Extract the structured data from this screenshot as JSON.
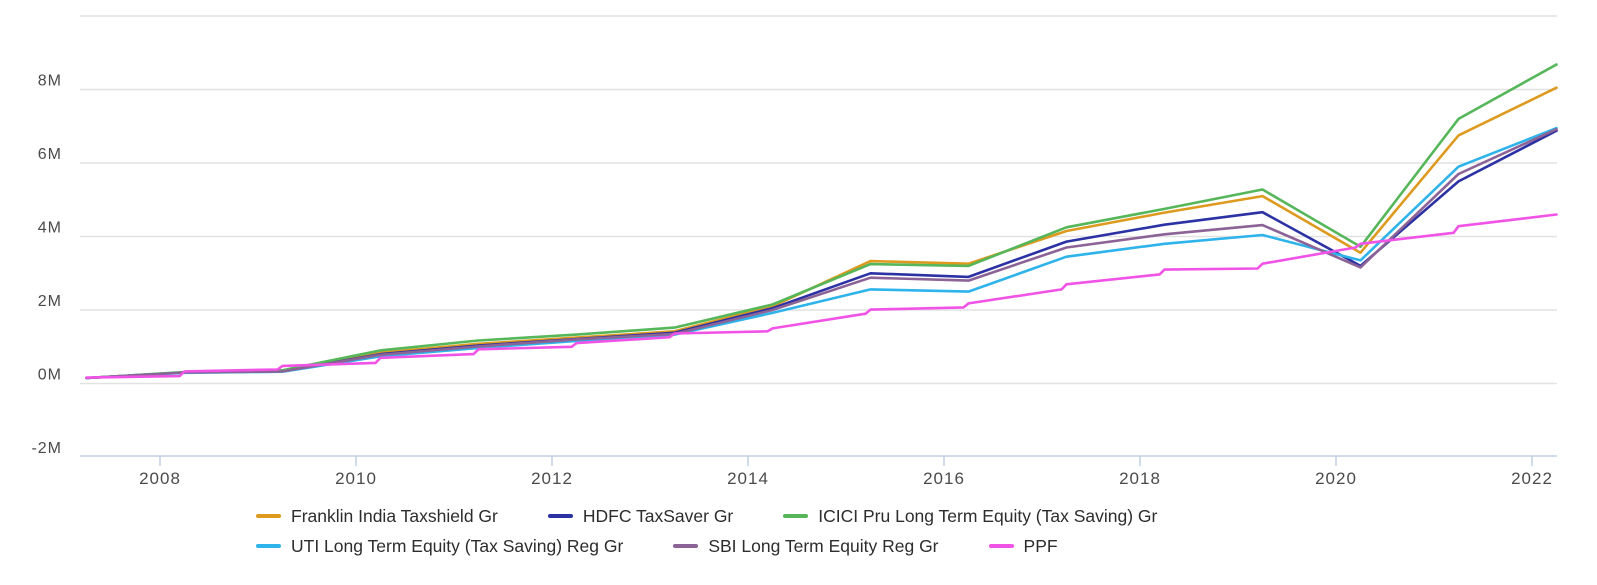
{
  "chart_data": {
    "type": "line",
    "title": "",
    "xlabel": "",
    "ylabel": "",
    "x_unit": "year",
    "xlim": [
      2007.25,
      2022.25
    ],
    "ylim": [
      -2,
      10
    ],
    "grid": true,
    "legend_position": "bottom",
    "colors": {
      "axis_line": "#bfcfe0",
      "grid_line": "#e2e2e2",
      "label_text": "#4b4b4b",
      "background": "#ffffff"
    },
    "y_gridlines": [
      10,
      8,
      6,
      4,
      2,
      0
    ],
    "y_ticks": [
      {
        "value": 8,
        "label": "8M"
      },
      {
        "value": 6,
        "label": "6M"
      },
      {
        "value": 4,
        "label": "4M"
      },
      {
        "value": 2,
        "label": "2M"
      },
      {
        "value": 0,
        "label": "0M"
      },
      {
        "value": -2,
        "label": "-2M"
      }
    ],
    "x_ticks": [
      {
        "value": 2008,
        "label": "2008"
      },
      {
        "value": 2010,
        "label": "2010"
      },
      {
        "value": 2012,
        "label": "2012"
      },
      {
        "value": 2014,
        "label": "2014"
      },
      {
        "value": 2016,
        "label": "2016"
      },
      {
        "value": 2018,
        "label": "2018"
      },
      {
        "value": 2020,
        "label": "2020"
      },
      {
        "value": 2022,
        "label": "2022"
      }
    ],
    "series": [
      {
        "name": "Franklin India Taxshield Gr",
        "color": "#dd9a1f",
        "x": [
          2007.25,
          2008.25,
          2009.25,
          2010.25,
          2011.25,
          2012.25,
          2013.25,
          2014.25,
          2015.25,
          2016.25,
          2017.25,
          2018.25,
          2019.25,
          2020.25,
          2021.25,
          2022.25
        ],
        "values": [
          0.15,
          0.3,
          0.35,
          0.84,
          1.08,
          1.25,
          1.42,
          2.1,
          3.33,
          3.26,
          4.15,
          4.65,
          5.1,
          3.56,
          6.75,
          8.05
        ]
      },
      {
        "name": "HDFC TaxSaver Gr",
        "color": "#2c32a3",
        "x": [
          2007.25,
          2008.25,
          2009.25,
          2010.25,
          2011.25,
          2012.25,
          2013.25,
          2014.25,
          2015.25,
          2016.25,
          2017.25,
          2018.25,
          2019.25,
          2020.25,
          2021.25,
          2022.25
        ],
        "values": [
          0.15,
          0.3,
          0.33,
          0.8,
          1.03,
          1.21,
          1.38,
          2.05,
          3.0,
          2.9,
          3.86,
          4.32,
          4.66,
          3.2,
          5.5,
          6.88
        ]
      },
      {
        "name": "ICICI Pru Long Term Equity (Tax Saving) Gr",
        "color": "#56b65a",
        "x": [
          2007.25,
          2008.25,
          2009.25,
          2010.25,
          2011.25,
          2012.25,
          2013.25,
          2014.25,
          2015.25,
          2016.25,
          2017.25,
          2018.25,
          2019.25,
          2020.25,
          2021.25,
          2022.25
        ],
        "values": [
          0.15,
          0.31,
          0.36,
          0.9,
          1.17,
          1.33,
          1.52,
          2.15,
          3.25,
          3.2,
          4.25,
          4.75,
          5.28,
          3.72,
          7.2,
          8.68
        ]
      },
      {
        "name": "UTI Long Term Equity (Tax Saving) Reg Gr",
        "color": "#2eb3eb",
        "x": [
          2007.25,
          2008.25,
          2009.25,
          2010.25,
          2011.25,
          2012.25,
          2013.25,
          2014.25,
          2015.25,
          2016.25,
          2017.25,
          2018.25,
          2019.25,
          2020.25,
          2021.25,
          2022.25
        ],
        "values": [
          0.15,
          0.29,
          0.32,
          0.74,
          0.97,
          1.16,
          1.33,
          1.92,
          2.56,
          2.5,
          3.45,
          3.8,
          4.04,
          3.35,
          5.9,
          6.95
        ]
      },
      {
        "name": "SBI Long Term Equity Reg Gr",
        "color": "#8c6396",
        "x": [
          2007.25,
          2008.25,
          2009.25,
          2010.25,
          2011.25,
          2012.25,
          2013.25,
          2014.25,
          2015.25,
          2016.25,
          2017.25,
          2018.25,
          2019.25,
          2020.25,
          2021.25,
          2022.25
        ],
        "values": [
          0.15,
          0.3,
          0.33,
          0.78,
          1.01,
          1.2,
          1.35,
          2.0,
          2.88,
          2.8,
          3.7,
          4.06,
          4.31,
          3.16,
          5.7,
          6.92
        ]
      },
      {
        "name": "PPF",
        "color": "#f053e6",
        "x": [
          2007.25,
          2008.2,
          2008.25,
          2009.2,
          2009.25,
          2010.2,
          2010.25,
          2011.2,
          2011.25,
          2012.2,
          2012.25,
          2013.2,
          2013.25,
          2014.2,
          2014.25,
          2015.2,
          2015.25,
          2016.2,
          2016.25,
          2017.2,
          2017.25,
          2018.2,
          2018.25,
          2019.2,
          2019.25,
          2020.2,
          2020.25,
          2021.2,
          2021.25,
          2022.25
        ],
        "values": [
          0.16,
          0.2,
          0.33,
          0.38,
          0.48,
          0.56,
          0.7,
          0.8,
          0.93,
          1.0,
          1.1,
          1.26,
          1.36,
          1.42,
          1.5,
          1.9,
          2.01,
          2.07,
          2.18,
          2.56,
          2.7,
          2.97,
          3.1,
          3.13,
          3.26,
          3.7,
          3.8,
          4.1,
          4.28,
          4.6
        ]
      }
    ],
    "legend_rows": [
      [
        0,
        1,
        2
      ],
      [
        3,
        4,
        5
      ]
    ]
  }
}
